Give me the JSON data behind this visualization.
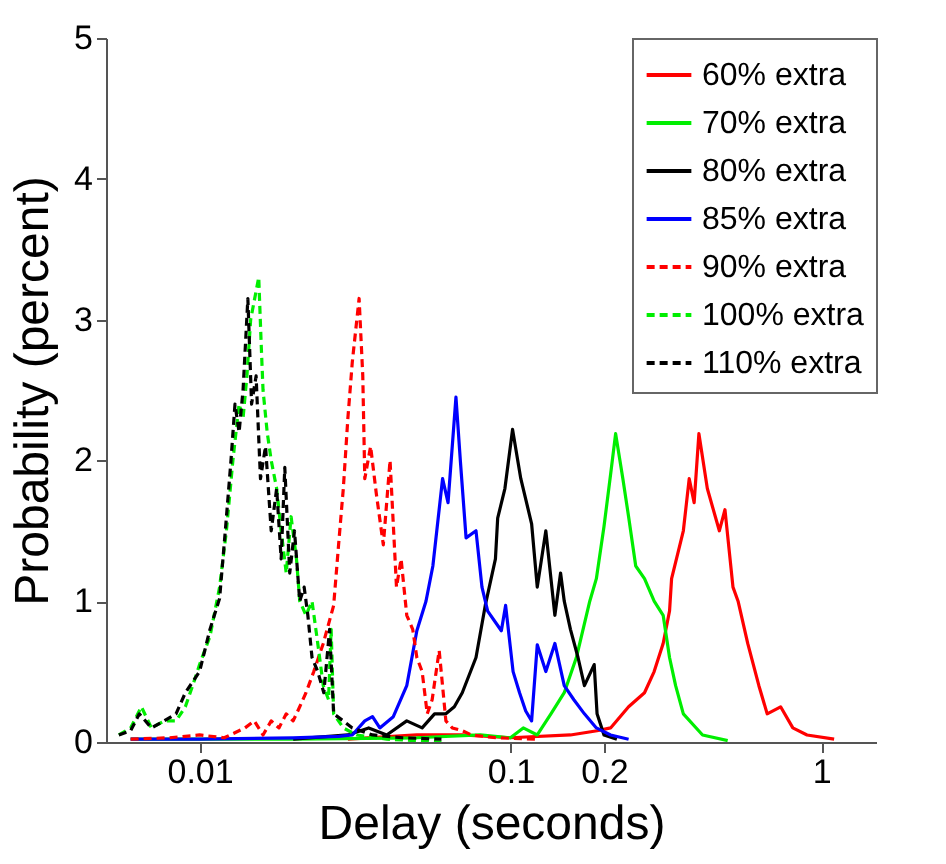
{
  "chart_data": {
    "type": "line",
    "xlabel": "Delay (seconds)",
    "ylabel": "Probability (percent)",
    "log": "x",
    "xlim": [
      0.005,
      1.5
    ],
    "xticks": [
      0.01,
      0.1,
      0.2,
      1
    ],
    "ylim": [
      0,
      5
    ],
    "yticks": [
      0,
      1,
      2,
      3,
      4,
      5
    ],
    "grid": false,
    "legend": "top right",
    "series": [
      {
        "name": "60% extra",
        "color": "#ff0000",
        "line_style": "solid",
        "x": [
          0.03,
          0.05,
          0.07,
          0.1,
          0.156,
          0.19,
          0.21,
          0.24,
          0.27,
          0.29,
          0.31,
          0.325,
          0.33,
          0.36,
          0.376,
          0.39,
          0.404,
          0.43,
          0.47,
          0.49,
          0.52,
          0.54,
          0.58,
          0.63,
          0.67,
          0.74,
          0.81,
          0.9,
          1.1
        ],
        "values": [
          0.02,
          0.05,
          0.05,
          0.03,
          0.05,
          0.08,
          0.1,
          0.25,
          0.35,
          0.5,
          0.7,
          0.93,
          1.16,
          1.5,
          1.87,
          1.7,
          2.19,
          1.8,
          1.5,
          1.65,
          1.1,
          1.0,
          0.7,
          0.4,
          0.2,
          0.25,
          0.1,
          0.05,
          0.02
        ]
      },
      {
        "name": "70% extra",
        "color": "#00ee00",
        "line_style": "solid",
        "x": [
          0.006,
          0.01,
          0.02,
          0.05,
          0.08,
          0.1,
          0.11,
          0.122,
          0.135,
          0.149,
          0.163,
          0.18,
          0.189,
          0.2,
          0.21,
          0.218,
          0.23,
          0.24,
          0.253,
          0.27,
          0.29,
          0.31,
          0.325,
          0.34,
          0.36,
          0.415,
          0.5
        ],
        "values": [
          0.02,
          0.02,
          0.02,
          0.03,
          0.05,
          0.03,
          0.1,
          0.05,
          0.2,
          0.35,
          0.6,
          1.0,
          1.16,
          1.53,
          1.9,
          2.19,
          1.87,
          1.6,
          1.25,
          1.16,
          1.0,
          0.9,
          0.6,
          0.4,
          0.2,
          0.05,
          0.01
        ]
      },
      {
        "name": "80% extra",
        "color": "#000000",
        "line_style": "solid",
        "x": [
          0.02,
          0.03,
          0.035,
          0.04,
          0.0464,
          0.052,
          0.057,
          0.062,
          0.066,
          0.07,
          0.0775,
          0.083,
          0.0895,
          0.091,
          0.096,
          0.1016,
          0.108,
          0.117,
          0.122,
          0.13,
          0.139,
          0.145,
          0.149,
          0.156,
          0.165,
          0.173,
          0.186,
          0.19,
          0.2,
          0.22
        ],
        "values": [
          0.02,
          0.05,
          0.1,
          0.05,
          0.15,
          0.1,
          0.2,
          0.2,
          0.25,
          0.35,
          0.6,
          0.97,
          1.3,
          1.59,
          1.8,
          2.22,
          1.87,
          1.55,
          1.1,
          1.5,
          0.9,
          1.2,
          1.0,
          0.8,
          0.6,
          0.4,
          0.55,
          0.2,
          0.05,
          0.02
        ]
      },
      {
        "name": "85% extra",
        "color": "#0000ff",
        "line_style": "solid",
        "x": [
          0.006,
          0.01,
          0.02,
          0.028,
          0.031,
          0.034,
          0.036,
          0.038,
          0.042,
          0.0464,
          0.05,
          0.0535,
          0.0563,
          0.0605,
          0.063,
          0.0668,
          0.069,
          0.072,
          0.0775,
          0.081,
          0.0845,
          0.0935,
          0.0965,
          0.102,
          0.107,
          0.112,
          0.117,
          0.122,
          0.13,
          0.139,
          0.149,
          0.16,
          0.173,
          0.189,
          0.21,
          0.24
        ],
        "values": [
          0.02,
          0.02,
          0.03,
          0.04,
          0.05,
          0.15,
          0.18,
          0.1,
          0.18,
          0.4,
          0.79,
          1.0,
          1.25,
          1.87,
          1.7,
          2.45,
          2.0,
          1.45,
          1.5,
          1.1,
          0.93,
          0.79,
          0.97,
          0.5,
          0.35,
          0.22,
          0.15,
          0.69,
          0.5,
          0.7,
          0.4,
          0.3,
          0.2,
          0.1,
          0.05,
          0.02
        ]
      },
      {
        "name": "90% extra",
        "color": "#ff0000",
        "line_style": "dashed",
        "x": [
          0.006,
          0.008,
          0.01,
          0.012,
          0.014,
          0.015,
          0.016,
          0.017,
          0.018,
          0.019,
          0.02,
          0.021,
          0.022,
          0.0233,
          0.025,
          0.027,
          0.028,
          0.029,
          0.03,
          0.031,
          0.0326,
          0.0335,
          0.034,
          0.0355,
          0.037,
          0.039,
          0.041,
          0.043,
          0.0445,
          0.0464,
          0.0485,
          0.05,
          0.052,
          0.054,
          0.056,
          0.059,
          0.062,
          0.065,
          0.07,
          0.075,
          0.09,
          0.12
        ],
        "values": [
          0.02,
          0.03,
          0.05,
          0.03,
          0.1,
          0.15,
          0.05,
          0.15,
          0.1,
          0.2,
          0.15,
          0.25,
          0.35,
          0.5,
          0.7,
          0.97,
          1.4,
          1.8,
          2.3,
          2.7,
          3.15,
          2.6,
          1.87,
          2.1,
          1.77,
          1.4,
          2.0,
          1.1,
          1.3,
          0.9,
          0.8,
          0.6,
          0.5,
          0.2,
          0.3,
          0.65,
          0.15,
          0.1,
          0.08,
          0.05,
          0.03,
          0.02
        ]
      },
      {
        "name": "100% extra",
        "color": "#00ee00",
        "line_style": "dashed",
        "x": [
          0.0055,
          0.006,
          0.0065,
          0.007,
          0.0077,
          0.0084,
          0.009,
          0.0095,
          0.01,
          0.0108,
          0.0116,
          0.0122,
          0.0128,
          0.0134,
          0.0138,
          0.0142,
          0.0146,
          0.0155,
          0.0158,
          0.016,
          0.0165,
          0.017,
          0.0177,
          0.0183,
          0.019,
          0.0197,
          0.0205,
          0.021,
          0.022,
          0.023,
          0.024,
          0.025,
          0.026,
          0.0265,
          0.027,
          0.029,
          0.032,
          0.04,
          0.06
        ],
        "values": [
          0.05,
          0.1,
          0.25,
          0.1,
          0.15,
          0.15,
          0.25,
          0.4,
          0.55,
          0.75,
          1.1,
          1.5,
          2.0,
          2.4,
          2.3,
          2.6,
          3.0,
          3.3,
          2.8,
          2.5,
          2.2,
          2.0,
          1.8,
          1.5,
          1.2,
          1.6,
          1.3,
          1.0,
          0.9,
          1.0,
          0.7,
          0.4,
          0.3,
          0.8,
          0.2,
          0.1,
          0.05,
          0.02,
          0
        ]
      },
      {
        "name": "110% extra",
        "color": "#000000",
        "line_style": "dashed",
        "x": [
          0.0055,
          0.006,
          0.0064,
          0.007,
          0.0077,
          0.0084,
          0.009,
          0.01,
          0.0108,
          0.0116,
          0.0121,
          0.0126,
          0.013,
          0.0134,
          0.0138,
          0.0143,
          0.0147,
          0.0152,
          0.0157,
          0.0163,
          0.017,
          0.0177,
          0.0183,
          0.0188,
          0.0195,
          0.0202,
          0.021,
          0.0217,
          0.0223,
          0.023,
          0.024,
          0.0251,
          0.0262,
          0.027,
          0.029,
          0.031,
          0.036,
          0.045,
          0.06
        ],
        "values": [
          0.05,
          0.08,
          0.2,
          0.1,
          0.15,
          0.2,
          0.35,
          0.5,
          0.8,
          1.02,
          1.5,
          1.98,
          2.4,
          2.2,
          2.5,
          3.15,
          2.4,
          2.6,
          1.87,
          2.1,
          1.5,
          1.8,
          1.3,
          1.95,
          1.2,
          1.5,
          1.0,
          1.1,
          0.9,
          0.6,
          0.5,
          0.35,
          0.8,
          0.2,
          0.15,
          0.1,
          0.05,
          0.03,
          0.02
        ]
      }
    ]
  }
}
